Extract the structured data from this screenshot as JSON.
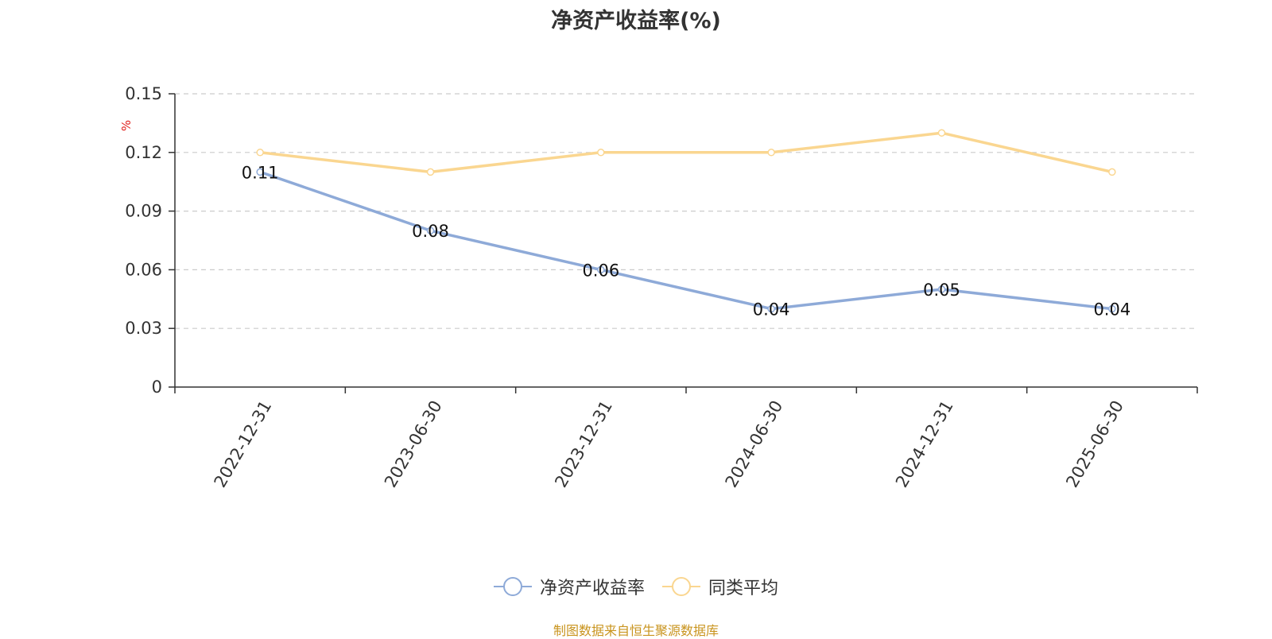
{
  "title": "净资产收益率(%)",
  "source_note": "制图数据来自恒生聚源数据库",
  "colors": {
    "primary": "#8eaad8",
    "average": "#fad690",
    "unit": "#e0201c",
    "source": "#c9941e"
  },
  "chart_data": {
    "type": "line",
    "title": "净资产收益率(%)",
    "ylabel": "%",
    "xlabel": "",
    "categories": [
      "2022-12-31",
      "2023-06-30",
      "2023-12-31",
      "2024-06-30",
      "2024-12-31",
      "2025-06-30"
    ],
    "ylim": [
      0,
      0.15
    ],
    "yticks": [
      "0",
      "0.03",
      "0.06",
      "0.09",
      "0.12",
      "0.15"
    ],
    "grid": true,
    "legend_position": "bottom",
    "series": [
      {
        "name": "净资产收益率",
        "values": [
          0.11,
          0.08,
          0.06,
          0.04,
          0.05,
          0.04
        ],
        "data_labels": [
          "0.11",
          "0.08",
          "0.06",
          "0.04",
          "0.05",
          "0.04"
        ]
      },
      {
        "name": "同类平均",
        "values": [
          0.12,
          0.11,
          0.12,
          0.12,
          0.13,
          0.11
        ]
      }
    ]
  }
}
